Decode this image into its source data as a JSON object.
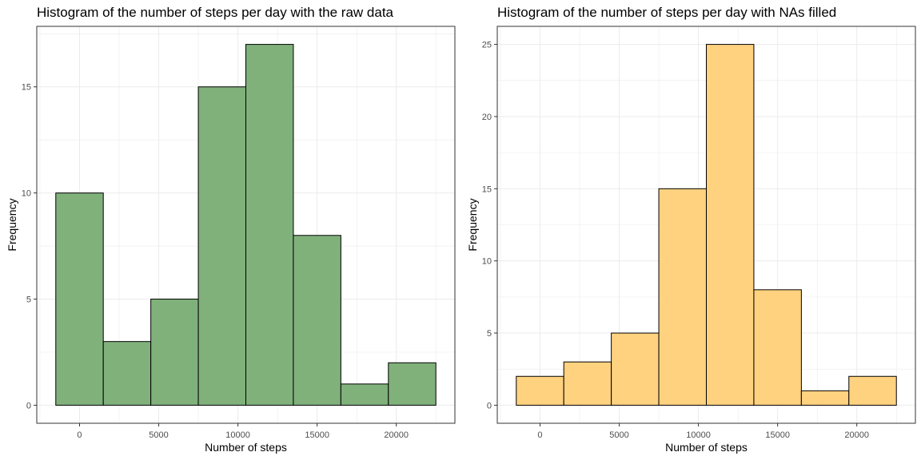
{
  "chart_data": [
    {
      "type": "bar",
      "title": "Histogram of the number of steps per day with the raw data",
      "xlabel": "Number of steps",
      "ylabel": "Frequency",
      "bins": [
        {
          "start": -1500,
          "end": 1500,
          "count": 10
        },
        {
          "start": 1500,
          "end": 4500,
          "count": 3
        },
        {
          "start": 4500,
          "end": 7500,
          "count": 5
        },
        {
          "start": 7500,
          "end": 10500,
          "count": 15
        },
        {
          "start": 10500,
          "end": 13500,
          "count": 17
        },
        {
          "start": 13500,
          "end": 16500,
          "count": 8
        },
        {
          "start": 16500,
          "end": 19500,
          "count": 1
        },
        {
          "start": 19500,
          "end": 22500,
          "count": 2
        }
      ],
      "xticks": [
        0,
        5000,
        10000,
        15000,
        20000
      ],
      "yticks": [
        0,
        5,
        10,
        15
      ],
      "xlim": [
        -2700,
        23700
      ],
      "ylim": [
        -0.85,
        17.85
      ],
      "fill_color": "#80b17b",
      "border_color": "#000000",
      "grid": true
    },
    {
      "type": "bar",
      "title": "Histogram of the number of steps per day with NAs filled",
      "xlabel": "Number of steps",
      "ylabel": "Frequency",
      "bins": [
        {
          "start": -1500,
          "end": 1500,
          "count": 2
        },
        {
          "start": 1500,
          "end": 4500,
          "count": 3
        },
        {
          "start": 4500,
          "end": 7500,
          "count": 5
        },
        {
          "start": 7500,
          "end": 10500,
          "count": 15
        },
        {
          "start": 10500,
          "end": 13500,
          "count": 25
        },
        {
          "start": 13500,
          "end": 16500,
          "count": 8
        },
        {
          "start": 16500,
          "end": 19500,
          "count": 1
        },
        {
          "start": 19500,
          "end": 22500,
          "count": 2
        }
      ],
      "xticks": [
        0,
        5000,
        10000,
        15000,
        20000
      ],
      "yticks": [
        0,
        5,
        10,
        15,
        20,
        25
      ],
      "xlim": [
        -2700,
        23700
      ],
      "ylim": [
        -1.25,
        26.25
      ],
      "fill_color": "#ffd27f",
      "border_color": "#000000",
      "grid": true
    }
  ]
}
